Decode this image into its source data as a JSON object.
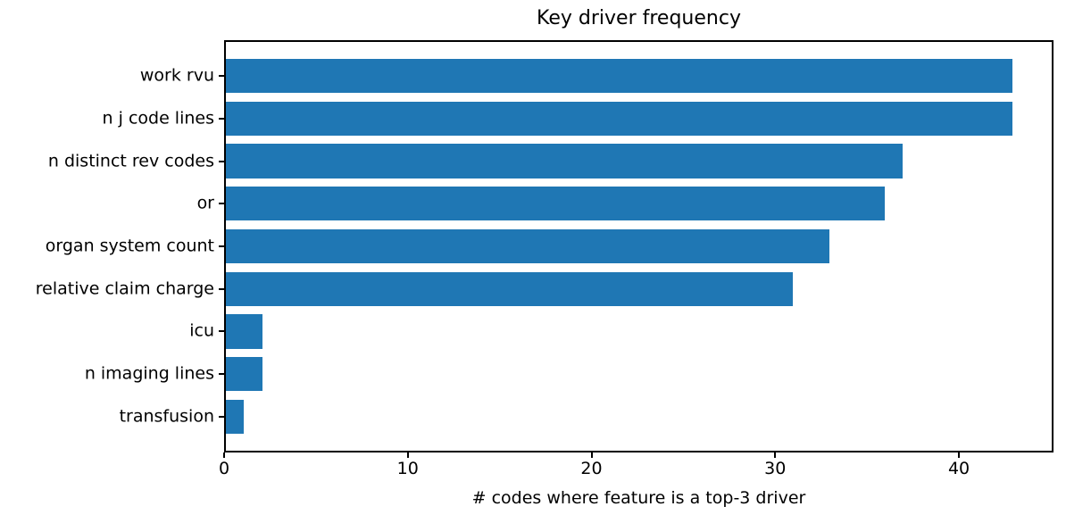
{
  "chart_data": {
    "type": "bar",
    "orientation": "horizontal",
    "title": "Key driver frequency",
    "xlabel": "# codes where feature is a top-3 driver",
    "ylabel": "",
    "categories": [
      "work rvu",
      "n j code lines",
      "n distinct rev codes",
      "or",
      "organ system count",
      "relative claim charge",
      "icu",
      "n imaging lines",
      "transfusion"
    ],
    "values": [
      43,
      43,
      37,
      36,
      33,
      31,
      2,
      2,
      1
    ],
    "xticks": [
      0,
      10,
      20,
      30,
      40
    ],
    "xlim": [
      0,
      45.15
    ],
    "grid": "off",
    "legend": "none",
    "bar_color": "#1f77b4",
    "axis_color": "#000000",
    "text_color": "#000000",
    "background_color": "#ffffff"
  }
}
